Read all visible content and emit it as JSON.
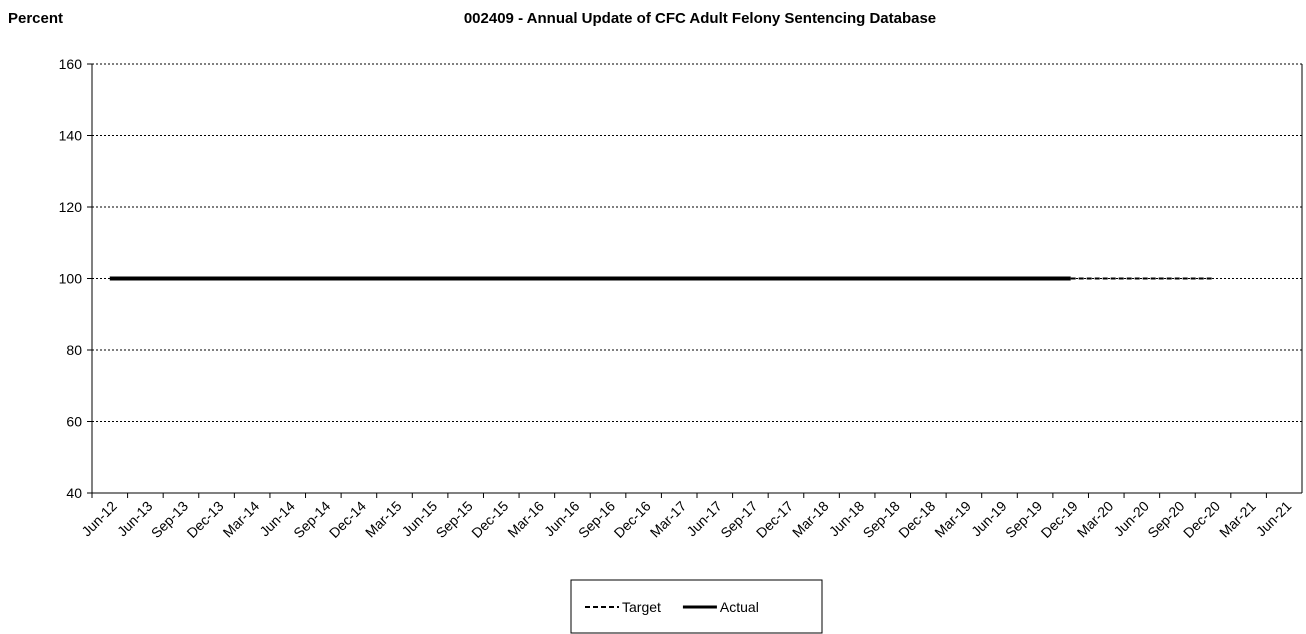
{
  "chart_data": {
    "type": "line",
    "title": "002409 - Annual Update of CFC Adult Felony Sentencing Database",
    "y_label": "Percent",
    "categories": [
      "Jun-12",
      "Jun-13",
      "Sep-13",
      "Dec-13",
      "Mar-14",
      "Jun-14",
      "Sep-14",
      "Dec-14",
      "Mar-15",
      "Jun-15",
      "Sep-15",
      "Dec-15",
      "Mar-16",
      "Jun-16",
      "Sep-16",
      "Dec-16",
      "Mar-17",
      "Jun-17",
      "Sep-17",
      "Dec-17",
      "Mar-18",
      "Jun-18",
      "Sep-18",
      "Dec-18",
      "Mar-19",
      "Jun-19",
      "Sep-19",
      "Dec-19",
      "Mar-20",
      "Jun-20",
      "Sep-20",
      "Dec-20",
      "Mar-21",
      "Jun-21"
    ],
    "series": [
      {
        "name": "Target",
        "color": "#000000",
        "style": "dashed",
        "values": [
          null,
          null,
          null,
          null,
          null,
          null,
          null,
          null,
          null,
          null,
          null,
          null,
          null,
          null,
          null,
          null,
          null,
          null,
          null,
          null,
          null,
          null,
          null,
          null,
          null,
          null,
          null,
          100,
          100,
          100,
          100,
          100,
          null,
          null
        ]
      },
      {
        "name": "Actual",
        "color": "#000000",
        "style": "solid",
        "values": [
          100,
          100,
          100,
          100,
          100,
          100,
          100,
          100,
          100,
          100,
          100,
          100,
          100,
          100,
          100,
          100,
          100,
          100,
          100,
          100,
          100,
          100,
          100,
          100,
          100,
          100,
          100,
          100,
          null,
          null,
          null,
          null,
          null,
          null
        ]
      }
    ],
    "ylim": [
      40,
      160
    ],
    "yticks": [
      40,
      60,
      80,
      100,
      120,
      140,
      160
    ],
    "grid": true,
    "legend": "bottom"
  }
}
